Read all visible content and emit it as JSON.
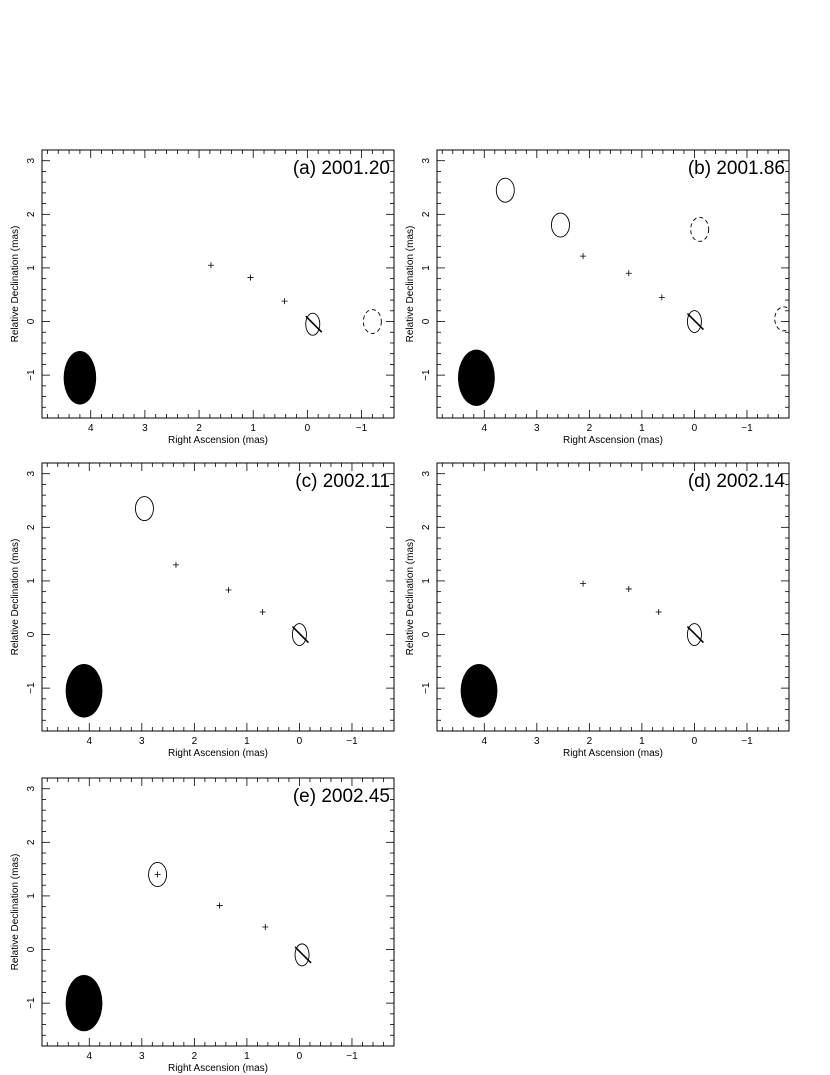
{
  "figure": {
    "xlabel": "Right Ascension  (mas)",
    "ylabel": "Relative Declination  (mas)"
  },
  "chart_data": [
    {
      "type": "contour",
      "panel": "(a) 2001.20",
      "xlabel": "Right Ascension  (mas)",
      "ylabel": "Relative Declination  (mas)",
      "xlim": [
        4.9,
        -1.6
      ],
      "ylim": [
        -1.8,
        3.2
      ],
      "xticks": [
        4,
        3,
        2,
        1,
        0,
        -1
      ],
      "yticks": [
        3,
        2,
        1,
        0,
        -1
      ],
      "x_axis_reversed": true,
      "core": [
        -0.1,
        -0.05
      ],
      "contour_levels": 10,
      "components": [
        {
          "x": 1.78,
          "y": 1.05
        },
        {
          "x": 1.05,
          "y": 0.82
        },
        {
          "x": 0.42,
          "y": 0.38
        }
      ],
      "isolated_contours": [
        {
          "x": -1.2,
          "y": 0.0,
          "dashed": true
        }
      ],
      "beam": {
        "x": 4.2,
        "y": -1.05,
        "major_mas": 1.0,
        "minor_mas": 0.6
      }
    },
    {
      "type": "contour",
      "panel": "(b) 2001.86",
      "xlabel": "Right Ascension  (mas)",
      "ylabel": "Relative Declination  (mas)",
      "xlim": [
        4.9,
        -1.8
      ],
      "ylim": [
        -1.8,
        3.2
      ],
      "xticks": [
        4,
        3,
        2,
        1,
        0,
        -1
      ],
      "yticks": [
        3,
        2,
        1,
        0,
        -1
      ],
      "x_axis_reversed": true,
      "core": [
        0.0,
        0.0
      ],
      "contour_levels": 14,
      "components": [
        {
          "x": 2.12,
          "y": 1.22
        },
        {
          "x": 1.25,
          "y": 0.9
        },
        {
          "x": 0.62,
          "y": 0.45
        }
      ],
      "isolated_contours": [
        {
          "x": 3.6,
          "y": 2.45,
          "dashed": false
        },
        {
          "x": 2.55,
          "y": 1.8,
          "dashed": false
        },
        {
          "x": -0.1,
          "y": 1.72,
          "dashed": true
        },
        {
          "x": -1.7,
          "y": 0.05,
          "dashed": true
        }
      ],
      "beam": {
        "x": 4.15,
        "y": -1.05,
        "major_mas": 1.05,
        "minor_mas": 0.7
      }
    },
    {
      "type": "contour",
      "panel": "(c) 2002.11",
      "xlabel": "Right Ascension  (mas)",
      "ylabel": "Relative Declination  (mas)",
      "xlim": [
        4.9,
        -1.8
      ],
      "ylim": [
        -1.8,
        3.2
      ],
      "xticks": [
        4,
        3,
        2,
        1,
        0,
        -1
      ],
      "yticks": [
        3,
        2,
        1,
        0,
        -1
      ],
      "x_axis_reversed": true,
      "core": [
        0.0,
        0.0
      ],
      "contour_levels": 13,
      "components": [
        {
          "x": 2.35,
          "y": 1.3
        },
        {
          "x": 1.35,
          "y": 0.83
        },
        {
          "x": 0.7,
          "y": 0.42
        }
      ],
      "isolated_contours": [
        {
          "x": 2.95,
          "y": 2.35,
          "dashed": false
        }
      ],
      "beam": {
        "x": 4.1,
        "y": -1.05,
        "major_mas": 1.0,
        "minor_mas": 0.7
      }
    },
    {
      "type": "contour",
      "panel": "(d) 2002.14",
      "xlabel": "Right Ascension  (mas)",
      "ylabel": "Relative Declination  (mas)",
      "xlim": [
        4.9,
        -1.8
      ],
      "ylim": [
        -1.8,
        3.2
      ],
      "xticks": [
        4,
        3,
        2,
        1,
        0,
        -1
      ],
      "yticks": [
        3,
        2,
        1,
        0,
        -1
      ],
      "x_axis_reversed": true,
      "core": [
        0.0,
        0.0
      ],
      "contour_levels": 14,
      "components": [
        {
          "x": 2.12,
          "y": 0.95
        },
        {
          "x": 1.25,
          "y": 0.85
        },
        {
          "x": 0.68,
          "y": 0.42
        }
      ],
      "isolated_contours": [],
      "beam": {
        "x": 4.1,
        "y": -1.05,
        "major_mas": 1.0,
        "minor_mas": 0.7
      }
    },
    {
      "type": "contour",
      "panel": "(e) 2002.45",
      "xlabel": "Right Ascension  (mas)",
      "ylabel": "Relative Declination  (mas)",
      "xlim": [
        4.9,
        -1.8
      ],
      "ylim": [
        -1.8,
        3.2
      ],
      "xticks": [
        4,
        3,
        2,
        1,
        0,
        -1
      ],
      "yticks": [
        3,
        2,
        1,
        0,
        -1
      ],
      "x_axis_reversed": true,
      "core": [
        -0.05,
        -0.1
      ],
      "contour_levels": 13,
      "components": [
        {
          "x": 2.7,
          "y": 1.4
        },
        {
          "x": 1.52,
          "y": 0.82
        },
        {
          "x": 0.65,
          "y": 0.42
        }
      ],
      "isolated_contours": [
        {
          "x": 2.7,
          "y": 1.4,
          "dashed": false
        }
      ],
      "beam": {
        "x": 4.1,
        "y": -1.0,
        "major_mas": 1.05,
        "minor_mas": 0.7
      }
    }
  ]
}
